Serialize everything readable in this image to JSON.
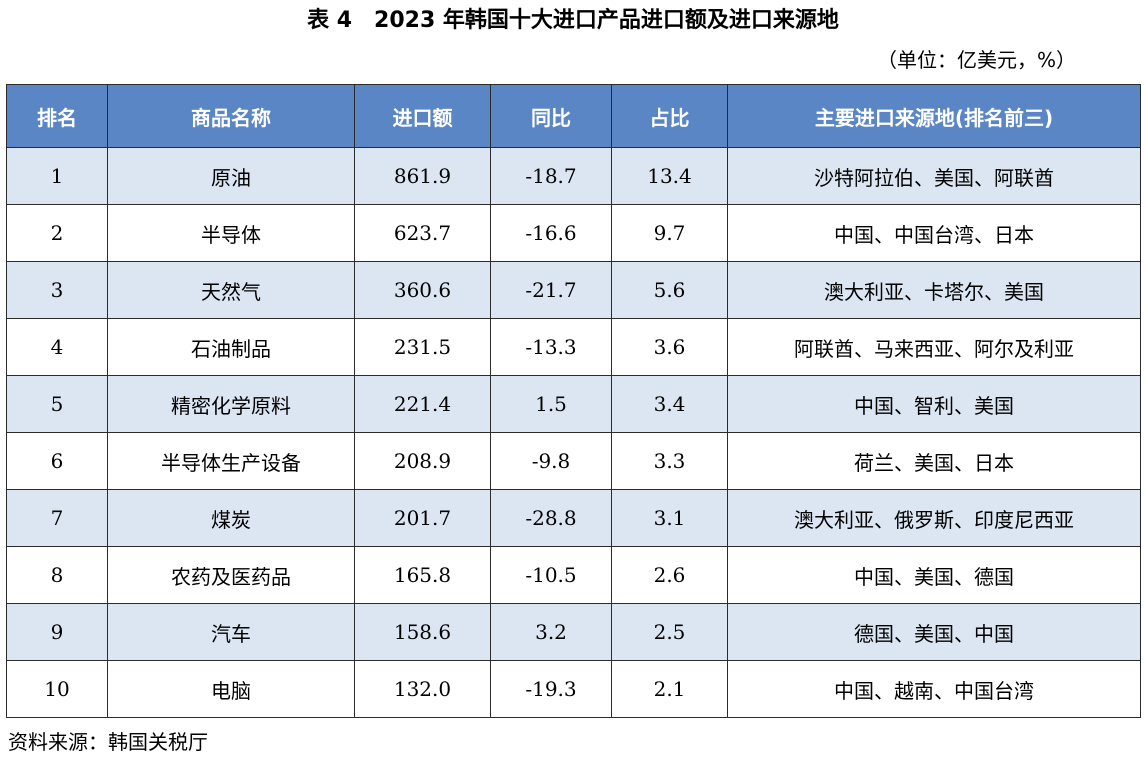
{
  "title": "表 4　2023 年韩国十大进口产品进口额及进口来源地",
  "unit": "（单位：亿美元，%）",
  "table": {
    "headers": [
      "排名",
      "商品名称",
      "进口额",
      "同比",
      "占比",
      "主要进口来源地(排名前三)"
    ],
    "rows": [
      [
        "1",
        "原油",
        "861.9",
        "-18.7",
        "13.4",
        "沙特阿拉伯、美国、阿联酋"
      ],
      [
        "2",
        "半导体",
        "623.7",
        "-16.6",
        "9.7",
        "中国、中国台湾、日本"
      ],
      [
        "3",
        "天然气",
        "360.6",
        "-21.7",
        "5.6",
        "澳大利亚、卡塔尔、美国"
      ],
      [
        "4",
        "石油制品",
        "231.5",
        "-13.3",
        "3.6",
        "阿联酋、马来西亚、阿尔及利亚"
      ],
      [
        "5",
        "精密化学原料",
        "221.4",
        "1.5",
        "3.4",
        "中国、智利、美国"
      ],
      [
        "6",
        "半导体生产设备",
        "208.9",
        "-9.8",
        "3.3",
        "荷兰、美国、日本"
      ],
      [
        "7",
        "煤炭",
        "201.7",
        "-28.8",
        "3.1",
        "澳大利亚、俄罗斯、印度尼西亚"
      ],
      [
        "8",
        "农药及医药品",
        "165.8",
        "-10.5",
        "2.6",
        "中国、美国、德国"
      ],
      [
        "9",
        "汽车",
        "158.6",
        "3.2",
        "2.5",
        "德国、美国、中国"
      ],
      [
        "10",
        "电脑",
        "132.0",
        "-19.3",
        "2.1",
        "中国、越南、中国台湾"
      ]
    ]
  },
  "source": "资料来源：韩国关税厅",
  "colors": {
    "header_bg": "#5b86c5",
    "header_text": "#ffffff",
    "stripe_bg": "#dce6f3",
    "border": "#2b2b2b"
  }
}
